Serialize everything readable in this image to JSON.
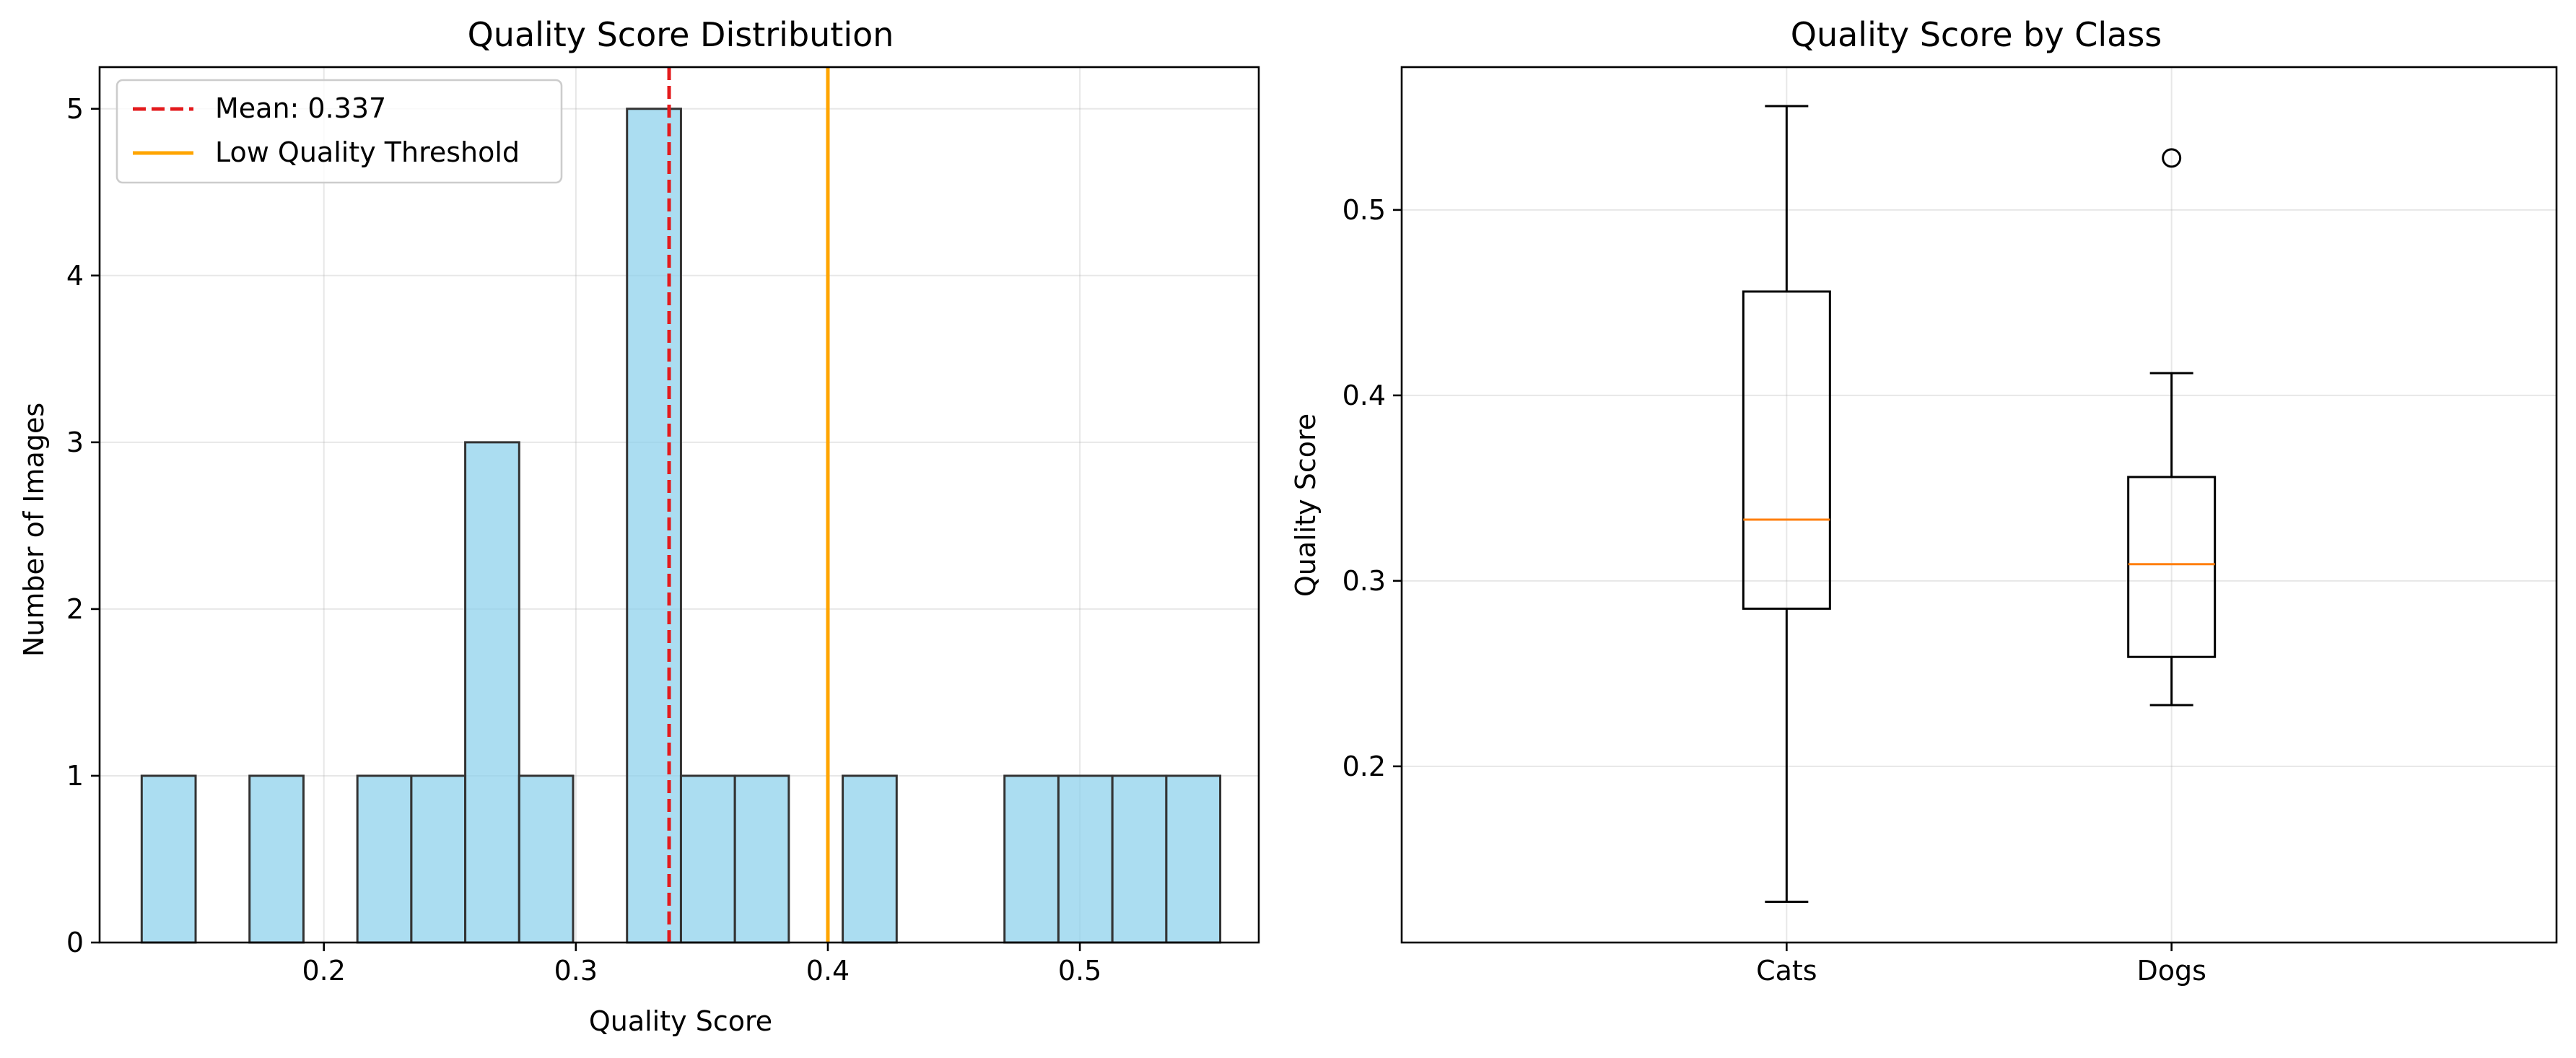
{
  "chart_data": [
    {
      "type": "bar",
      "title": "Quality Score Distribution",
      "xlabel": "Quality Score",
      "ylabel": "Number of Images",
      "xlim": [
        0.111,
        0.571
      ],
      "ylim": [
        0,
        5.25
      ],
      "xticks": [
        0.2,
        0.3,
        0.4,
        0.5
      ],
      "xtick_labels": [
        "0.2",
        "0.3",
        "0.4",
        "0.5"
      ],
      "yticks": [
        0,
        1,
        2,
        3,
        4,
        5
      ],
      "ytick_labels": [
        "0",
        "1",
        "2",
        "3",
        "4",
        "5"
      ],
      "grid": true,
      "bin_edges": [
        0.1277,
        0.1491,
        0.1705,
        0.1919,
        0.2133,
        0.2347,
        0.2561,
        0.2775,
        0.2989,
        0.3203,
        0.3417,
        0.3631,
        0.3845,
        0.4059,
        0.4273,
        0.4487,
        0.4701,
        0.4915,
        0.5129,
        0.5343,
        0.5557
      ],
      "counts": [
        1,
        0,
        1,
        0,
        1,
        1,
        3,
        1,
        0,
        5,
        1,
        1,
        0,
        1,
        0,
        0,
        1,
        1,
        1,
        1
      ],
      "bar_color": "#87CEEB",
      "edge_color": "#333333",
      "lines": [
        {
          "label": "Mean: 0.337",
          "x": 0.337,
          "color": "#e31a1c",
          "style": "dashed"
        },
        {
          "label": "Low Quality Threshold",
          "x": 0.4,
          "color": "#ffa500",
          "style": "solid"
        }
      ],
      "legend": "top-left"
    },
    {
      "type": "box",
      "title": "Quality Score by Class",
      "xlabel": "",
      "ylabel": "Quality Score",
      "categories": [
        "Cats",
        "Dogs"
      ],
      "ylim": [
        0.105,
        0.577
      ],
      "yticks": [
        0.2,
        0.3,
        0.4,
        0.5
      ],
      "ytick_labels": [
        "0.2",
        "0.3",
        "0.4",
        "0.5"
      ],
      "grid": true,
      "boxes": [
        {
          "name": "Cats",
          "whisker_low": 0.127,
          "q1": 0.285,
          "median": 0.333,
          "q3": 0.456,
          "whisker_high": 0.556,
          "outliers": []
        },
        {
          "name": "Dogs",
          "whisker_low": 0.233,
          "q1": 0.259,
          "median": 0.309,
          "q3": 0.356,
          "whisker_high": 0.412,
          "outliers": [
            0.528
          ]
        }
      ],
      "median_color": "#ff7f0e"
    }
  ]
}
